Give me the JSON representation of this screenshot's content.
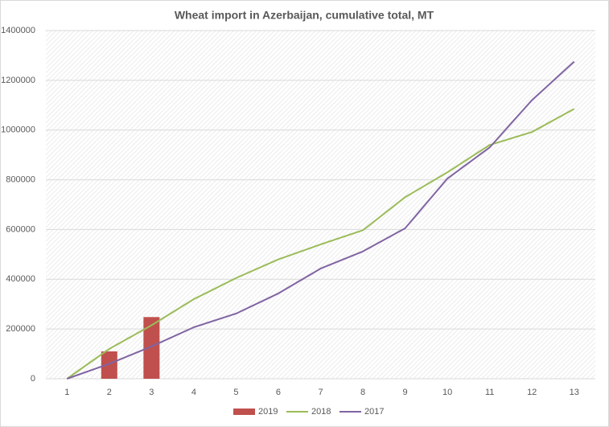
{
  "chart_data": {
    "type": "combo",
    "title": "Wheat import in Azerbaijan, cumulative total, MT",
    "categories": [
      "1",
      "2",
      "3",
      "4",
      "5",
      "6",
      "7",
      "8",
      "9",
      "10",
      "11",
      "12",
      "13"
    ],
    "series": [
      {
        "name": "2019",
        "type": "bar",
        "color": "#c0504d",
        "values": [
          null,
          110000,
          248000,
          null,
          null,
          null,
          null,
          null,
          null,
          null,
          null,
          null,
          null
        ]
      },
      {
        "name": "2018",
        "type": "line",
        "color": "#9bbb59",
        "values": [
          0,
          120000,
          215000,
          320000,
          405000,
          480000,
          540000,
          597000,
          730000,
          830000,
          940000,
          992000,
          1085000
        ]
      },
      {
        "name": "2017",
        "type": "line",
        "color": "#8064a2",
        "values": [
          0,
          60000,
          130000,
          207000,
          262000,
          343000,
          443000,
          512000,
          605000,
          805000,
          930000,
          1120000,
          1275000
        ]
      }
    ],
    "ylim": [
      0,
      1400000
    ],
    "yticks": [
      0,
      200000,
      400000,
      600000,
      800000,
      1000000,
      1200000,
      1400000
    ],
    "grid": true,
    "legend": "bottom"
  }
}
